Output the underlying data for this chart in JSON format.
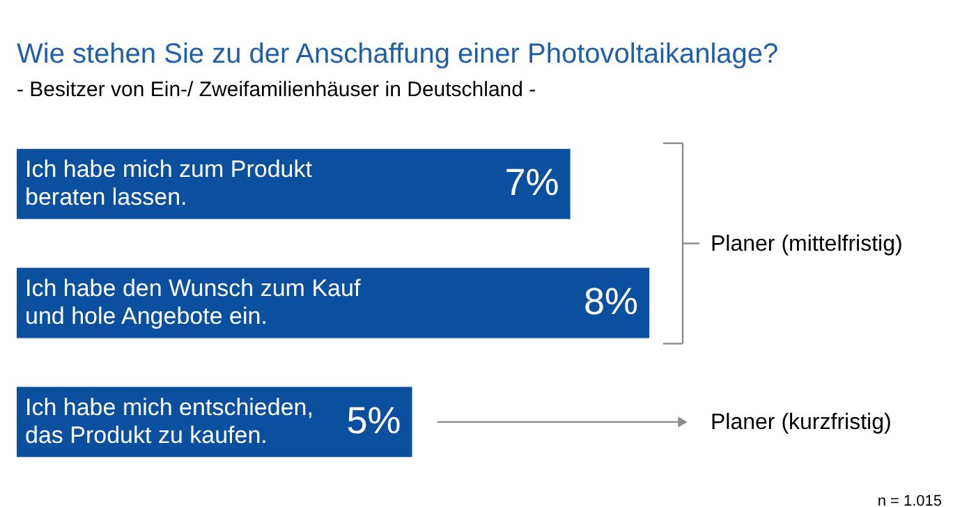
{
  "chart_data": {
    "type": "bar",
    "orientation": "horizontal",
    "title": "Wie stehen Sie zu der Anschaffung einer Photovoltaikanlage?",
    "subtitle": "- Besitzer von Ein-/ Zweifamilienhäuser in Deutschland -",
    "categories": [
      "Ich habe mich zum Produkt\nberaten lassen.",
      "Ich habe den Wunsch zum Kauf\nund hole Angebote ein.",
      "Ich habe mich entschieden,\ndas Produkt zu kaufen."
    ],
    "values": [
      7,
      8,
      5
    ],
    "value_labels": [
      "7%",
      "8%",
      "5%"
    ],
    "color": "#0b4f9f",
    "annotations": [
      "Planer (mittelfristig)",
      "Planer (kurzfristig)",
      "n = 1.015"
    ]
  }
}
